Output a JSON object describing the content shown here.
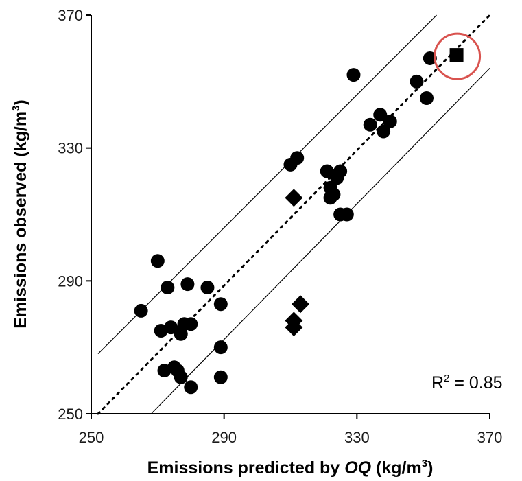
{
  "chart_data": {
    "type": "scatter",
    "xlabel": {
      "pre": "Emissions predicted by ",
      "ital": "OQ",
      "post": " (kg/m",
      "sup": "3",
      "end": ")"
    },
    "ylabel": {
      "pre": "Emissions observed (kg/m",
      "sup": "3",
      "end": ")"
    },
    "xlim": [
      250,
      370
    ],
    "ylim": [
      250,
      370
    ],
    "xticks": [
      "250",
      "290",
      "330",
      "370"
    ],
    "yticks": [
      "250",
      "290",
      "330",
      "370"
    ],
    "annotation": {
      "pre": "R",
      "sup": "2",
      "post": " = 0.85"
    },
    "reference_lines": [
      {
        "style": "dotted",
        "slope": 1,
        "intercept": 0
      },
      {
        "style": "solid",
        "slope": 1,
        "intercept": 16
      },
      {
        "style": "solid",
        "slope": 1,
        "intercept": -16
      }
    ],
    "highlight_color": "#d9534f",
    "series": [
      {
        "marker": "circle",
        "points": [
          [
            265,
            281
          ],
          [
            270,
            296
          ],
          [
            271,
            275
          ],
          [
            272,
            263
          ],
          [
            274,
            276
          ],
          [
            273,
            288
          ],
          [
            275,
            264
          ],
          [
            276,
            263
          ],
          [
            277,
            261
          ],
          [
            277,
            274
          ],
          [
            278,
            277
          ],
          [
            279,
            289
          ],
          [
            280,
            277
          ],
          [
            280,
            258
          ],
          [
            285,
            288
          ],
          [
            289,
            283
          ],
          [
            289,
            270
          ],
          [
            289,
            261
          ],
          [
            310,
            325
          ],
          [
            312,
            327
          ],
          [
            321,
            323
          ],
          [
            322,
            318
          ],
          [
            322,
            315
          ],
          [
            323,
            316
          ],
          [
            324,
            321
          ],
          [
            325,
            323
          ],
          [
            325,
            310
          ],
          [
            327,
            310
          ],
          [
            329,
            352
          ],
          [
            334,
            337
          ],
          [
            337,
            340
          ],
          [
            338,
            335
          ],
          [
            340,
            338
          ],
          [
            348,
            350
          ],
          [
            351,
            345
          ],
          [
            352,
            357
          ]
        ]
      },
      {
        "marker": "diamond",
        "points": [
          [
            311,
            315
          ],
          [
            311,
            278
          ],
          [
            311,
            276
          ],
          [
            313,
            283
          ]
        ]
      },
      {
        "marker": "square",
        "highlighted": true,
        "points": [
          [
            360,
            358
          ]
        ]
      }
    ]
  }
}
